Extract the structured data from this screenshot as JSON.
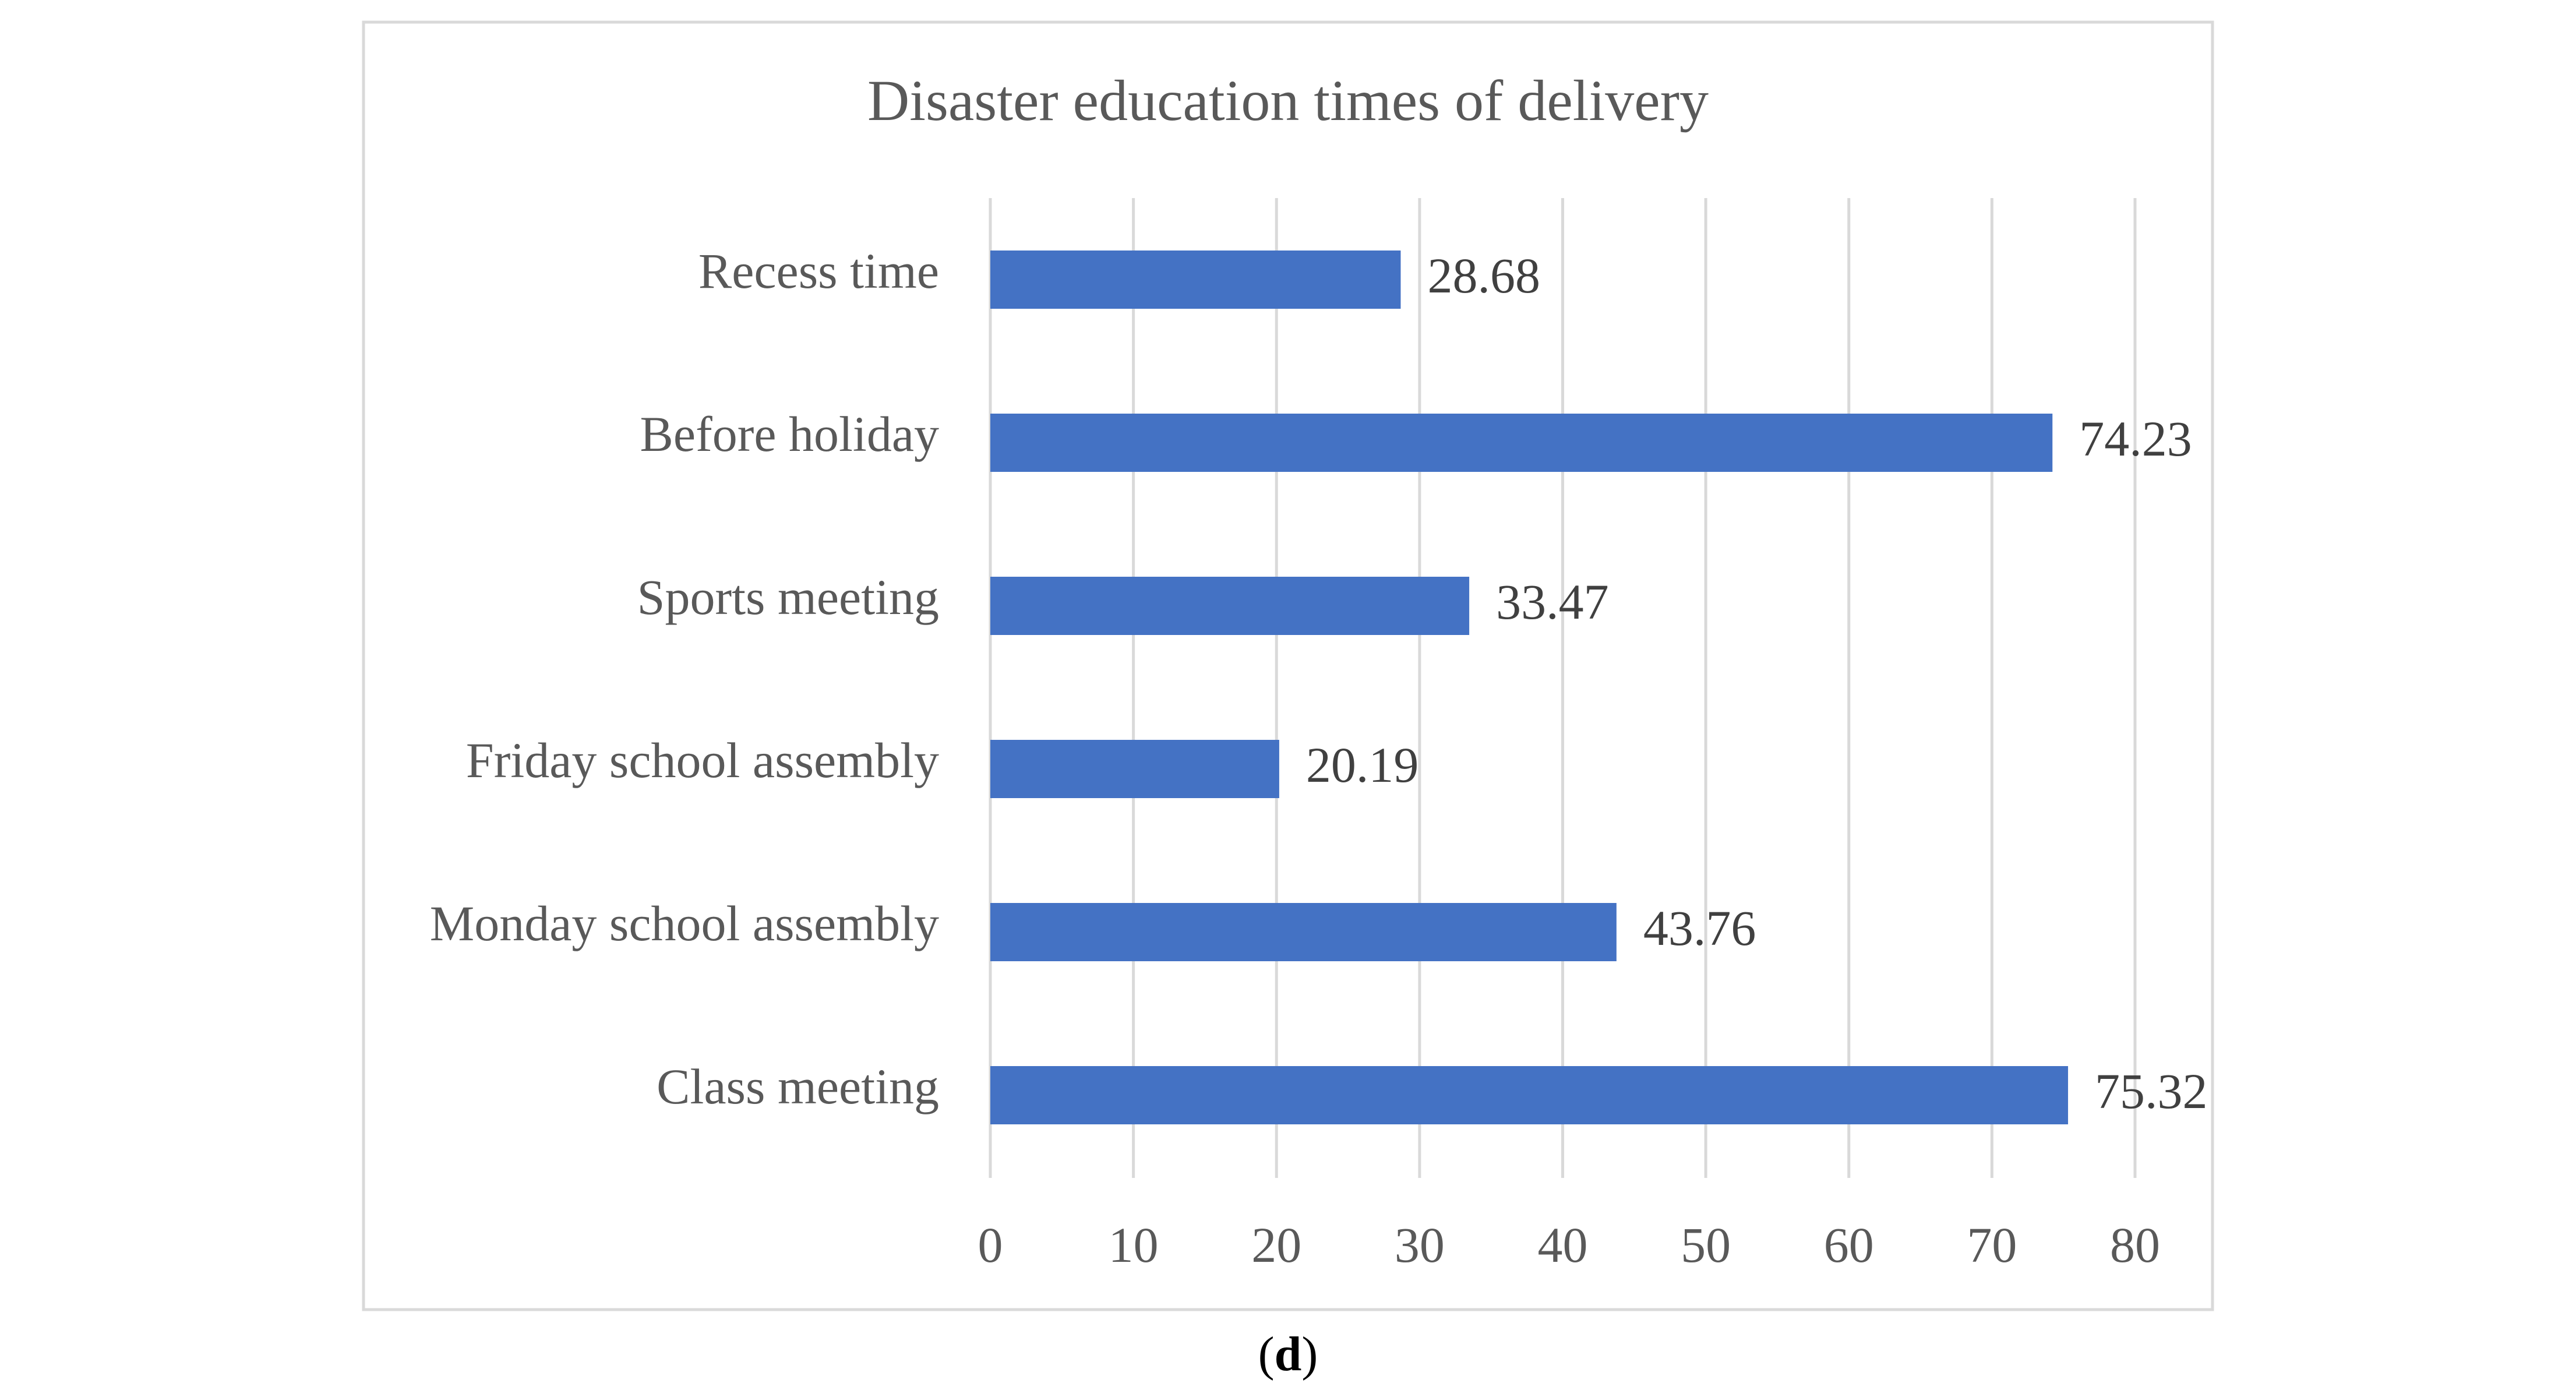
{
  "chart_data": {
    "type": "bar",
    "orientation": "horizontal",
    "title": "Disaster education times of delivery",
    "categories": [
      "Recess time",
      "Before holiday",
      "Sports meeting",
      "Friday school assembly",
      "Monday school assembly",
      "Class meeting"
    ],
    "values": [
      28.68,
      74.23,
      33.47,
      20.19,
      43.76,
      75.32
    ],
    "data_labels": [
      "28.68",
      "74.23",
      "33.47",
      "20.19",
      "43.76",
      "75.32"
    ],
    "xlabel": "",
    "ylabel": "",
    "xlim": [
      0,
      80
    ],
    "ticks": [
      0,
      10,
      20,
      30,
      40,
      50,
      60,
      70,
      80
    ],
    "tick_labels": [
      "0",
      "10",
      "20",
      "30",
      "40",
      "50",
      "60",
      "70",
      "80"
    ],
    "grid": true,
    "legend": "none",
    "bar_color": "#4472c4"
  },
  "caption": {
    "open": "(",
    "letter": "d",
    "close": ")"
  }
}
